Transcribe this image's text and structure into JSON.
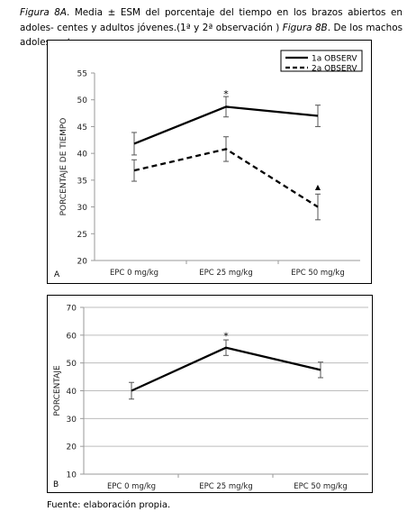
{
  "caption": {
    "fig_a": "Figura 8A",
    "part1": ". Media ± ESM del porcentaje del tiempo en los brazos abiertos en adoles-",
    "part2": "centes y adultos jóvenes.(1ª y 2ª observación ) ",
    "fig_b": "Figura 8B",
    "part3": ". De los machos adolescentes"
  },
  "source": "Fuente: elaboración propia.",
  "chart_data": [
    {
      "type": "line",
      "panel_label": "A",
      "categories": [
        "EPC 0 mg/kg",
        "EPC 25 mg/kg",
        "EPC 50 mg/kg"
      ],
      "ylabel": "PORCENTAJE DE TIEMPO",
      "xlabel": "",
      "ylim": [
        20,
        55
      ],
      "yticks": [
        20,
        25,
        30,
        35,
        40,
        45,
        50,
        55
      ],
      "grid": false,
      "legend": "top-right",
      "series": [
        {
          "name": "1a OBSERV",
          "style": "solid",
          "values": [
            41.8,
            48.7,
            47.0
          ],
          "errors": [
            2.1,
            1.9,
            2.0
          ]
        },
        {
          "name": "2a OBSERV",
          "style": "dashed",
          "values": [
            36.8,
            40.8,
            30.0
          ],
          "errors": [
            2.0,
            2.3,
            2.4
          ]
        }
      ],
      "annotations": [
        {
          "text": "*",
          "category": "EPC 25 mg/kg",
          "y": 51.5
        },
        {
          "text": "▲",
          "category": "EPC 50 mg/kg",
          "y": 33.8
        }
      ]
    },
    {
      "type": "line",
      "panel_label": "B",
      "categories": [
        "EPC 0 mg/kg",
        "EPC 25 mg/kg",
        "EPC 50 mg/kg"
      ],
      "ylabel": "PORCENTAJE",
      "xlabel": "",
      "ylim": [
        10,
        70
      ],
      "yticks": [
        10,
        20,
        30,
        40,
        50,
        60,
        70
      ],
      "grid": true,
      "series": [
        {
          "values": [
            40.0,
            55.5,
            47.5
          ],
          "errors": [
            3.0,
            2.8,
            2.8
          ]
        }
      ],
      "annotations": [
        {
          "text": "*",
          "category": "EPC 25 mg/kg",
          "y": 60.5
        }
      ]
    }
  ]
}
